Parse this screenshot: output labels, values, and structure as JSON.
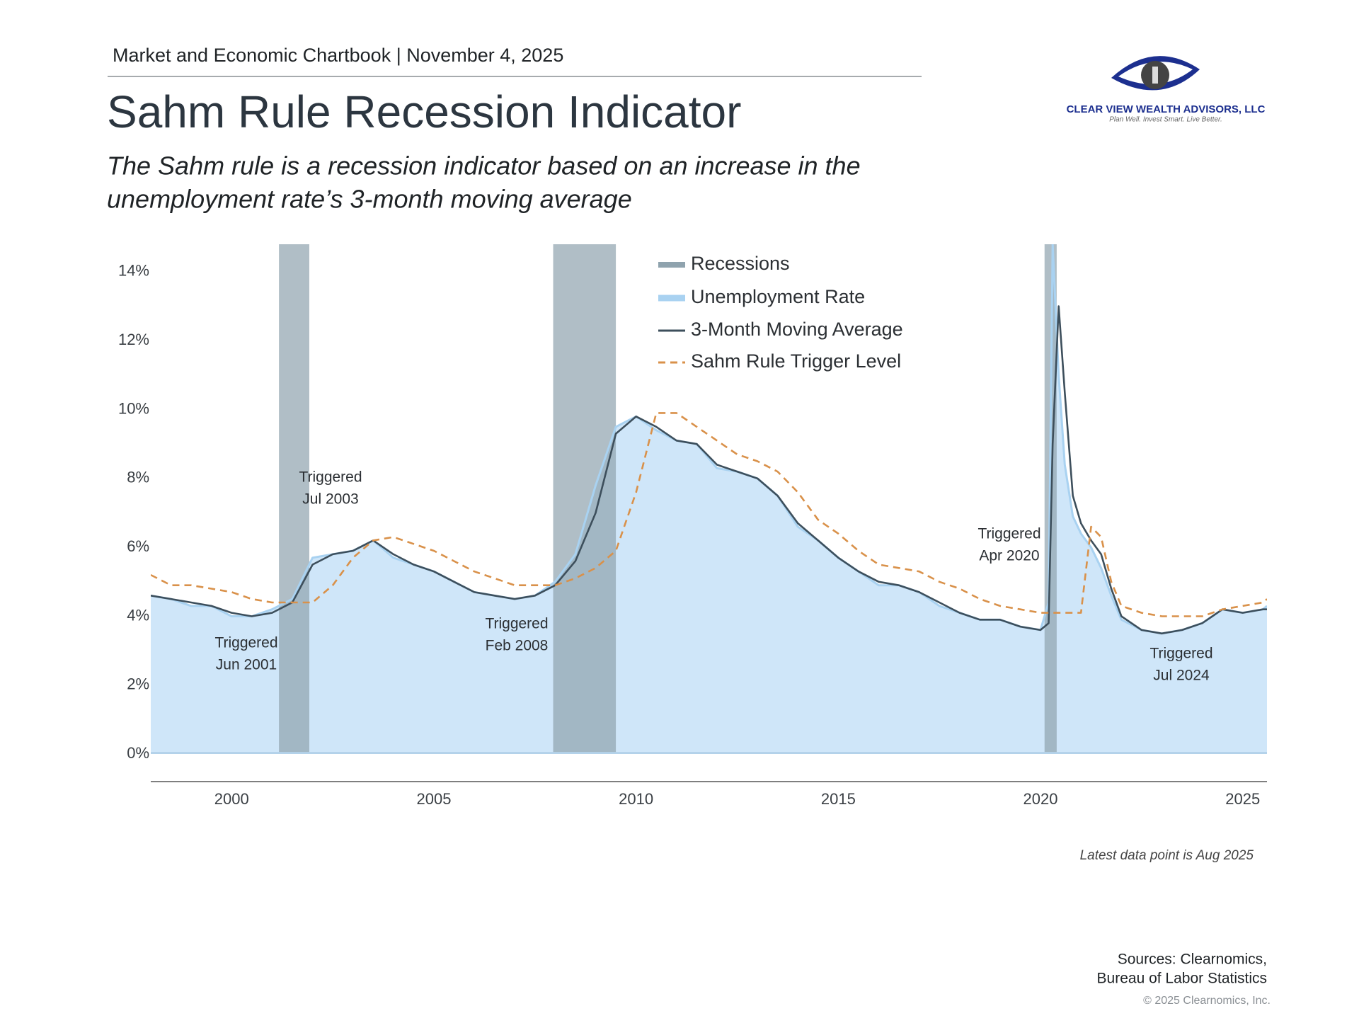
{
  "header": "Market and Economic Chartbook | November 4, 2025",
  "logo": {
    "name": "CLEAR VIEW WEALTH ADVISORS, LLC",
    "tagline": "Plan Well. Invest Smart. Live Better."
  },
  "chart_data": {
    "type": "line",
    "title": "Sahm Rule Recession Indicator",
    "subtitle": [
      "The Sahm rule is a recession indicator based on an increase in the",
      "unemployment rate’s 3-month moving average"
    ],
    "x": [
      1998.0,
      1998.5,
      1999.0,
      1999.5,
      2000.0,
      2000.5,
      2001.0,
      2001.5,
      2002.0,
      2002.5,
      2003.0,
      2003.5,
      2004.0,
      2004.5,
      2005.0,
      2005.5,
      2006.0,
      2006.5,
      2007.0,
      2007.5,
      2008.0,
      2008.5,
      2009.0,
      2009.5,
      2010.0,
      2010.5,
      2011.0,
      2011.5,
      2012.0,
      2012.5,
      2013.0,
      2013.5,
      2014.0,
      2014.5,
      2015.0,
      2015.5,
      2016.0,
      2016.5,
      2017.0,
      2017.5,
      2018.0,
      2018.5,
      2019.0,
      2019.5,
      2020.0,
      2020.2,
      2020.3,
      2020.45,
      2020.6,
      2020.8,
      2021.0,
      2021.25,
      2021.5,
      2021.75,
      2022.0,
      2022.5,
      2023.0,
      2023.5,
      2024.0,
      2024.5,
      2025.0,
      2025.5,
      2025.6
    ],
    "recessions": {
      "name": "Recessions",
      "color": "#8fa3ae",
      "periods": [
        [
          2001.17,
          2001.92
        ],
        [
          2007.95,
          2009.5
        ],
        [
          2020.1,
          2020.4
        ]
      ]
    },
    "series": [
      {
        "name": "Unemployment Rate",
        "color": "#a9d2f1",
        "fill": "#cfe6f9",
        "values": [
          4.6,
          4.5,
          4.3,
          4.3,
          4.0,
          4.0,
          4.2,
          4.5,
          5.7,
          5.8,
          5.9,
          6.2,
          5.7,
          5.5,
          5.3,
          5.0,
          4.7,
          4.6,
          4.5,
          4.6,
          5.0,
          5.8,
          7.8,
          9.5,
          9.8,
          9.4,
          9.1,
          9.0,
          8.3,
          8.2,
          8.0,
          7.5,
          6.6,
          6.2,
          5.7,
          5.3,
          4.9,
          4.9,
          4.7,
          4.3,
          4.1,
          3.9,
          3.9,
          3.7,
          3.6,
          4.4,
          14.8,
          11.0,
          8.4,
          6.9,
          6.4,
          6.0,
          5.4,
          4.6,
          3.9,
          3.6,
          3.5,
          3.6,
          3.8,
          4.2,
          4.1,
          4.2,
          4.3
        ]
      },
      {
        "name": "3-Month Moving Average",
        "color": "#3d4f5c",
        "values": [
          4.6,
          4.5,
          4.4,
          4.3,
          4.1,
          4.0,
          4.1,
          4.4,
          5.5,
          5.8,
          5.9,
          6.2,
          5.8,
          5.5,
          5.3,
          5.0,
          4.7,
          4.6,
          4.5,
          4.6,
          4.9,
          5.6,
          7.0,
          9.3,
          9.8,
          9.5,
          9.1,
          9.0,
          8.4,
          8.2,
          8.0,
          7.5,
          6.7,
          6.2,
          5.7,
          5.3,
          5.0,
          4.9,
          4.7,
          4.4,
          4.1,
          3.9,
          3.9,
          3.7,
          3.6,
          3.8,
          9.0,
          13.0,
          10.5,
          7.5,
          6.7,
          6.2,
          5.8,
          4.8,
          4.0,
          3.6,
          3.5,
          3.6,
          3.8,
          4.2,
          4.1,
          4.2,
          4.2
        ]
      },
      {
        "name": "Sahm Rule Trigger Level",
        "color": "#d9914a",
        "dashed": true,
        "values": [
          5.2,
          4.9,
          4.9,
          4.8,
          4.7,
          4.5,
          4.4,
          4.4,
          4.4,
          4.9,
          5.7,
          6.2,
          6.3,
          6.1,
          5.9,
          5.6,
          5.3,
          5.1,
          4.9,
          4.9,
          4.9,
          5.1,
          5.4,
          5.9,
          7.6,
          9.9,
          9.9,
          9.5,
          9.1,
          8.7,
          8.5,
          8.2,
          7.6,
          6.8,
          6.4,
          5.9,
          5.5,
          5.4,
          5.3,
          5.0,
          4.8,
          4.5,
          4.3,
          4.2,
          4.1,
          4.1,
          4.1,
          4.1,
          4.1,
          4.1,
          4.1,
          6.6,
          6.3,
          5.0,
          4.3,
          4.1,
          4.0,
          4.0,
          4.0,
          4.2,
          4.3,
          4.4,
          4.5
        ]
      }
    ],
    "xlim": [
      1998.0,
      2025.6
    ],
    "ylim": [
      -0.8,
      14.8
    ],
    "xticks": [
      2000,
      2005,
      2010,
      2015,
      2020,
      2025
    ],
    "yticks": [
      {
        "value": 0,
        "label": "0%"
      },
      {
        "value": 2,
        "label": "2%"
      },
      {
        "value": 4,
        "label": "4%"
      },
      {
        "value": 6,
        "label": "6%"
      },
      {
        "value": 8,
        "label": "8%"
      },
      {
        "value": 10,
        "label": "10%"
      },
      {
        "value": 12,
        "label": "12%"
      },
      {
        "value": 14,
        "label": "14%"
      }
    ],
    "grid": false,
    "legend": "top",
    "annotations": [
      [
        "Triggered",
        "Jun 2001"
      ],
      [
        "Triggered",
        "Jul 2003"
      ],
      [
        "Triggered",
        "Feb 2008"
      ],
      [
        "Triggered",
        "Apr 2020"
      ],
      [
        "Triggered",
        "Jul 2024"
      ]
    ],
    "note": "Latest data point is Aug 2025"
  },
  "sources": [
    "Sources: Clearnomics,",
    "Bureau of Labor Statistics"
  ],
  "copyright": "© 2025 Clearnomics, Inc."
}
